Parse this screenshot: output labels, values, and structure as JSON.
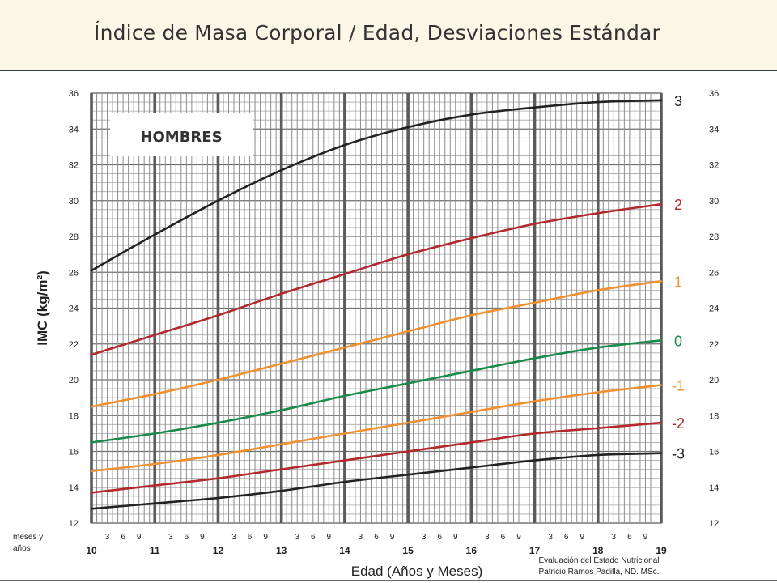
{
  "header": {
    "title": "Índice de Masa Corporal / Edad, Desviaciones Estándar"
  },
  "credit": {
    "line1": "Evaluación del Estado Nutricional",
    "line2": "Patricio Ramos Padilla, ND. MSc."
  },
  "chart_data": {
    "type": "line",
    "title": "",
    "box_label": "HOMBRES",
    "xlabel": "Edad (Años y Meses)",
    "ylabel": "IMC (kg/m²)",
    "x_axis_caption": "meses y años",
    "xlim": [
      10,
      19
    ],
    "ylim": [
      12,
      36
    ],
    "y_ticks": [
      12,
      14,
      16,
      18,
      20,
      22,
      24,
      26,
      28,
      30,
      32,
      34,
      36
    ],
    "year_ticks": [
      10,
      11,
      12,
      13,
      14,
      15,
      16,
      17,
      18,
      19
    ],
    "month_ticks": [
      "3",
      "6",
      "9"
    ],
    "grid": true,
    "x": [
      10,
      11,
      12,
      13,
      14,
      15,
      16,
      17,
      18,
      19
    ],
    "series": [
      {
        "name": "3",
        "color": "#222222",
        "values": [
          26.1,
          28.1,
          30.0,
          31.7,
          33.1,
          34.1,
          34.8,
          35.2,
          35.5,
          35.6
        ]
      },
      {
        "name": "2",
        "color": "#b3282d",
        "values": [
          21.4,
          22.5,
          23.6,
          24.8,
          25.9,
          27.0,
          27.9,
          28.7,
          29.3,
          29.8
        ]
      },
      {
        "name": "1",
        "color": "#f0902f",
        "values": [
          18.5,
          19.2,
          20.0,
          20.9,
          21.8,
          22.7,
          23.6,
          24.3,
          25.0,
          25.5
        ]
      },
      {
        "name": "0",
        "color": "#1a8a4a",
        "values": [
          16.5,
          17.0,
          17.6,
          18.3,
          19.1,
          19.8,
          20.5,
          21.2,
          21.8,
          22.2
        ]
      },
      {
        "name": "-1",
        "color": "#f0902f",
        "values": [
          14.9,
          15.3,
          15.8,
          16.4,
          17.0,
          17.6,
          18.2,
          18.8,
          19.3,
          19.7
        ]
      },
      {
        "name": "-2",
        "color": "#b3282d",
        "values": [
          13.7,
          14.1,
          14.5,
          15.0,
          15.5,
          16.0,
          16.5,
          17.0,
          17.3,
          17.6
        ]
      },
      {
        "name": "-3",
        "color": "#222222",
        "values": [
          12.8,
          13.1,
          13.4,
          13.8,
          14.3,
          14.7,
          15.1,
          15.5,
          15.8,
          15.9
        ]
      }
    ]
  }
}
